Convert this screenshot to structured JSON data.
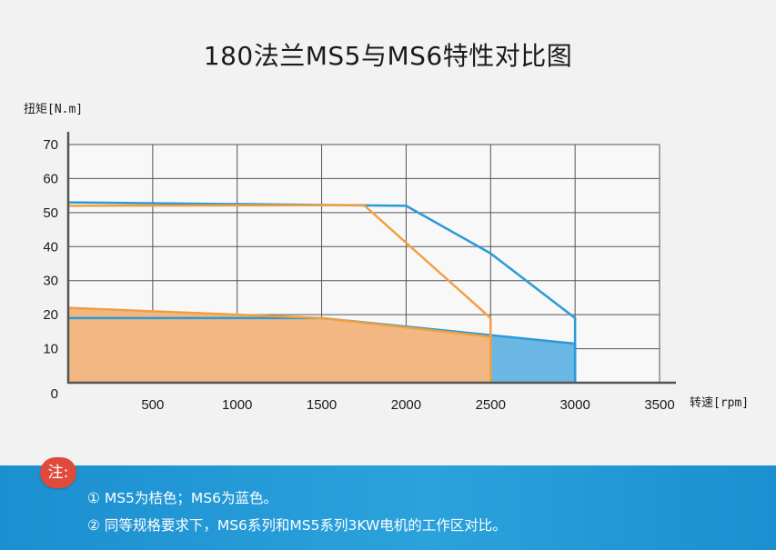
{
  "title": "180法兰MS5与MS6特性对比图",
  "notes": {
    "badge": "注:",
    "lines": [
      "① MS5为桔色；MS6为蓝色。",
      "② 同等规格要求下，MS6系列和MS5系列3KW电机的工作区对比。"
    ]
  },
  "colors": {
    "ms5": "#f0a040",
    "ms5_fill": "#f2b782",
    "ms6": "#2a9ad8",
    "ms6_fill": "#6bb7e3",
    "grid": "#555555",
    "plot_bg": "#f8f8f8"
  },
  "chart_data": {
    "type": "area",
    "xlabel": "转速[rpm]",
    "ylabel": "扭矩[N.m]",
    "xlim": [
      0,
      3500
    ],
    "ylim": [
      0,
      70
    ],
    "x_ticks": [
      500,
      1000,
      1500,
      2000,
      2500,
      3000,
      3500
    ],
    "y_ticks": [
      0,
      10,
      20,
      30,
      40,
      50,
      60,
      70
    ],
    "grid": true,
    "series": [
      {
        "key": "ms6",
        "peak": {
          "x": [
            0,
            2000,
            2500,
            3000,
            3000
          ],
          "y": [
            53,
            52,
            38,
            19,
            0
          ]
        },
        "continuous": {
          "x": [
            0,
            1500,
            3000,
            3000
          ],
          "y": [
            19,
            19,
            11.5,
            0
          ]
        }
      },
      {
        "key": "ms5",
        "peak": {
          "x": [
            0,
            1750,
            2500,
            2500
          ],
          "y": [
            52,
            52.2,
            19,
            0
          ]
        },
        "continuous": {
          "x": [
            0,
            1500,
            2500,
            2500
          ],
          "y": [
            22,
            19,
            13.5,
            0
          ]
        }
      }
    ]
  }
}
